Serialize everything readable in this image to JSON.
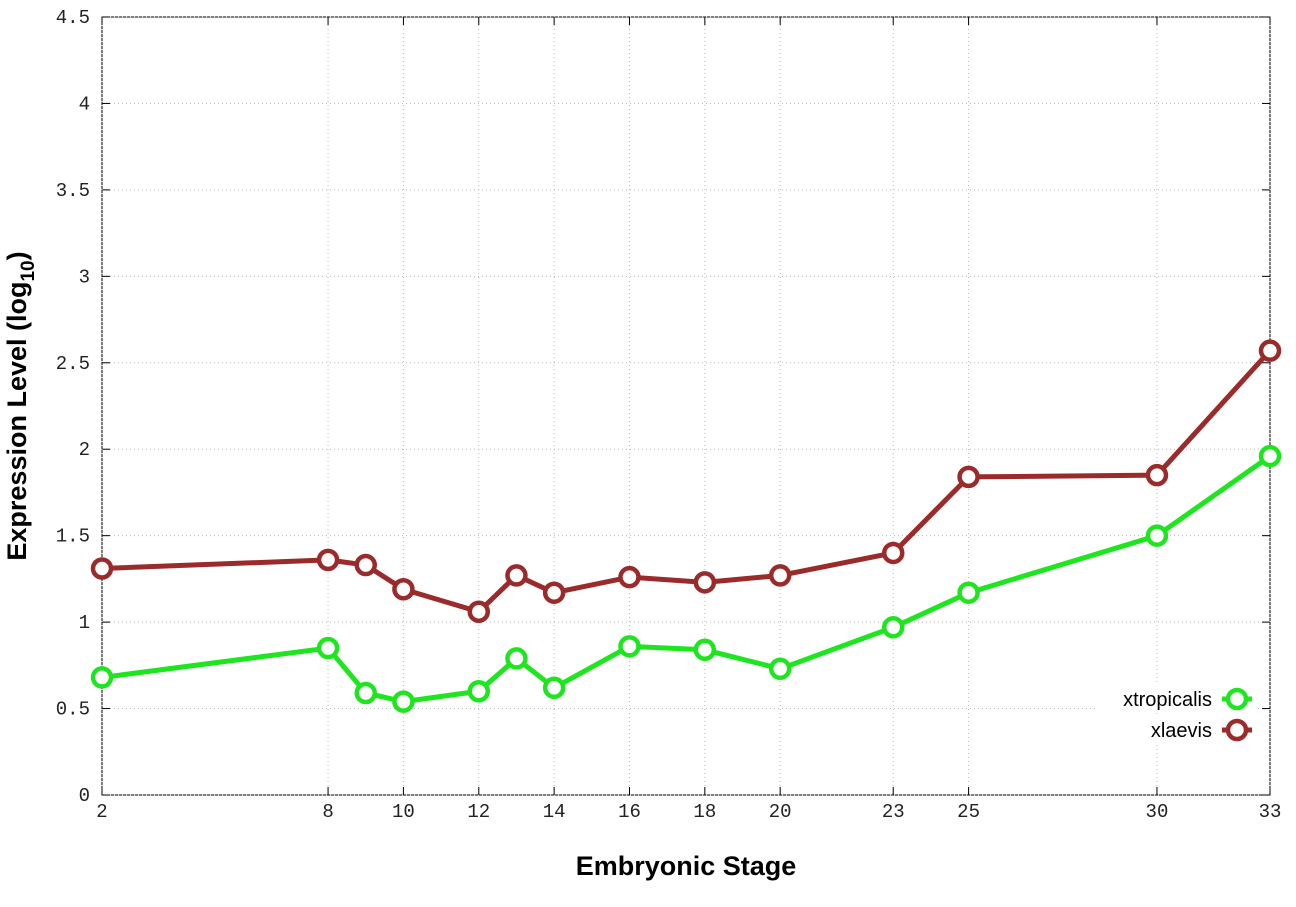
{
  "chart_data": {
    "type": "line",
    "xlabel": "Embryonic Stage",
    "ylabel": {
      "text": "Expression Level (log",
      "subscript": "10",
      "end": ")"
    },
    "x": [
      2,
      8,
      9,
      10,
      12,
      13,
      14,
      16,
      18,
      20,
      23,
      25,
      30,
      33
    ],
    "series": [
      {
        "name": "xtropicalis",
        "color": "#1ee61e",
        "values": [
          0.68,
          0.85,
          0.59,
          0.54,
          0.6,
          0.79,
          0.62,
          0.86,
          0.84,
          0.73,
          0.97,
          1.17,
          1.5,
          1.96
        ]
      },
      {
        "name": "xlaevis",
        "color": "#9b2a2a",
        "values": [
          1.31,
          1.36,
          1.33,
          1.19,
          1.06,
          1.27,
          1.17,
          1.26,
          1.23,
          1.27,
          1.4,
          1.84,
          1.85,
          2.57
        ]
      }
    ],
    "xlim": [
      2,
      33
    ],
    "xticks": [
      2,
      8,
      10,
      12,
      14,
      16,
      18,
      20,
      23,
      25,
      30,
      33
    ],
    "ylim": [
      0,
      4.5
    ],
    "yticks": [
      0,
      0.5,
      1,
      1.5,
      2,
      2.5,
      3,
      3.5,
      4,
      4.5
    ],
    "grid": true,
    "legend": "lower-right"
  }
}
